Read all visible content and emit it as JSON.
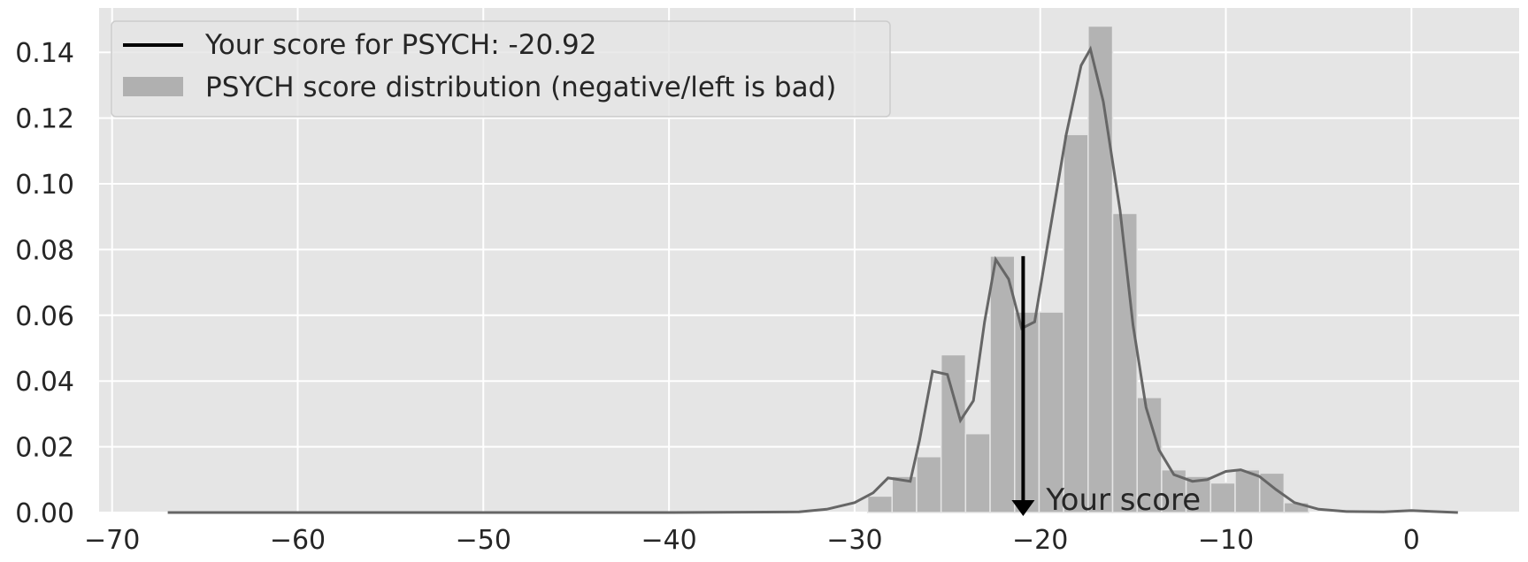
{
  "chart_data": {
    "type": "bar",
    "title": "",
    "xlabel": "",
    "ylabel": "",
    "xlim": [
      -70.7,
      5.8
    ],
    "ylim": [
      0,
      0.1535
    ],
    "xticks": [
      -70,
      -60,
      -50,
      -40,
      -30,
      -20,
      -10,
      0
    ],
    "xtick_labels": [
      "−70",
      "−60",
      "−50",
      "−40",
      "−30",
      "−20",
      "−10",
      "0"
    ],
    "yticks": [
      0,
      0.02,
      0.04,
      0.06,
      0.08,
      0.1,
      0.12,
      0.14
    ],
    "ytick_labels": [
      "0.00",
      "0.02",
      "0.04",
      "0.06",
      "0.08",
      "0.10",
      "0.12",
      "0.14"
    ],
    "grid": true,
    "legend_position": "top-left",
    "legend": [
      {
        "label": "Your score for PSYCH: -20.92",
        "kind": "line",
        "color": "#000000"
      },
      {
        "label": "PSYCH score distribution (negative/left is bad)",
        "kind": "patch",
        "color": "#b0b0b0"
      }
    ],
    "histogram": {
      "name": "PSYCH score distribution (negative/left is bad)",
      "bin_width": 1.32,
      "bins": [
        {
          "x0": -29.3,
          "value": 0.005
        },
        {
          "x0": -27.98,
          "value": 0.011
        },
        {
          "x0": -26.66,
          "value": 0.017
        },
        {
          "x0": -25.34,
          "value": 0.048
        },
        {
          "x0": -24.02,
          "value": 0.024
        },
        {
          "x0": -22.7,
          "value": 0.078
        },
        {
          "x0": -21.38,
          "value": 0.061
        },
        {
          "x0": -20.06,
          "value": 0.061
        },
        {
          "x0": -18.74,
          "value": 0.115
        },
        {
          "x0": -17.42,
          "value": 0.148
        },
        {
          "x0": -16.1,
          "value": 0.091
        },
        {
          "x0": -14.78,
          "value": 0.035
        },
        {
          "x0": -13.46,
          "value": 0.013
        },
        {
          "x0": -12.14,
          "value": 0.011
        },
        {
          "x0": -10.82,
          "value": 0.009
        },
        {
          "x0": -9.5,
          "value": 0.013
        },
        {
          "x0": -8.18,
          "value": 0.012
        },
        {
          "x0": -6.86,
          "value": 0.003
        }
      ]
    },
    "kde": {
      "name": "density curve",
      "color": "#666666",
      "points": [
        [
          -67.0,
          0.0
        ],
        [
          -40.0,
          0.0
        ],
        [
          -33.0,
          0.0002
        ],
        [
          -31.5,
          0.001
        ],
        [
          -30.0,
          0.003
        ],
        [
          -29.0,
          0.006
        ],
        [
          -28.2,
          0.0105
        ],
        [
          -27.0,
          0.0095
        ],
        [
          -26.5,
          0.022
        ],
        [
          -25.8,
          0.043
        ],
        [
          -25.0,
          0.042
        ],
        [
          -24.3,
          0.028
        ],
        [
          -23.6,
          0.034
        ],
        [
          -23.0,
          0.058
        ],
        [
          -22.4,
          0.077
        ],
        [
          -21.7,
          0.071
        ],
        [
          -21.0,
          0.056
        ],
        [
          -20.3,
          0.058
        ],
        [
          -19.5,
          0.085
        ],
        [
          -18.6,
          0.115
        ],
        [
          -17.8,
          0.136
        ],
        [
          -17.3,
          0.141
        ],
        [
          -16.6,
          0.125
        ],
        [
          -15.7,
          0.092
        ],
        [
          -15.0,
          0.057
        ],
        [
          -14.3,
          0.032
        ],
        [
          -13.6,
          0.019
        ],
        [
          -12.8,
          0.0115
        ],
        [
          -11.8,
          0.0095
        ],
        [
          -11.0,
          0.01
        ],
        [
          -10.0,
          0.0125
        ],
        [
          -9.2,
          0.013
        ],
        [
          -8.2,
          0.011
        ],
        [
          -7.3,
          0.007
        ],
        [
          -6.3,
          0.003
        ],
        [
          -5.0,
          0.001
        ],
        [
          -3.5,
          0.0003
        ],
        [
          -1.5,
          0.0002
        ],
        [
          0.0,
          0.0006
        ],
        [
          1.2,
          0.0003
        ],
        [
          2.5,
          0.0
        ]
      ]
    },
    "marker": {
      "name": "Your score for PSYCH: -20.92",
      "x": -20.92,
      "y_top": 0.078,
      "y_bottom": 0.0,
      "annotation": "Your score",
      "color": "#000000"
    }
  }
}
